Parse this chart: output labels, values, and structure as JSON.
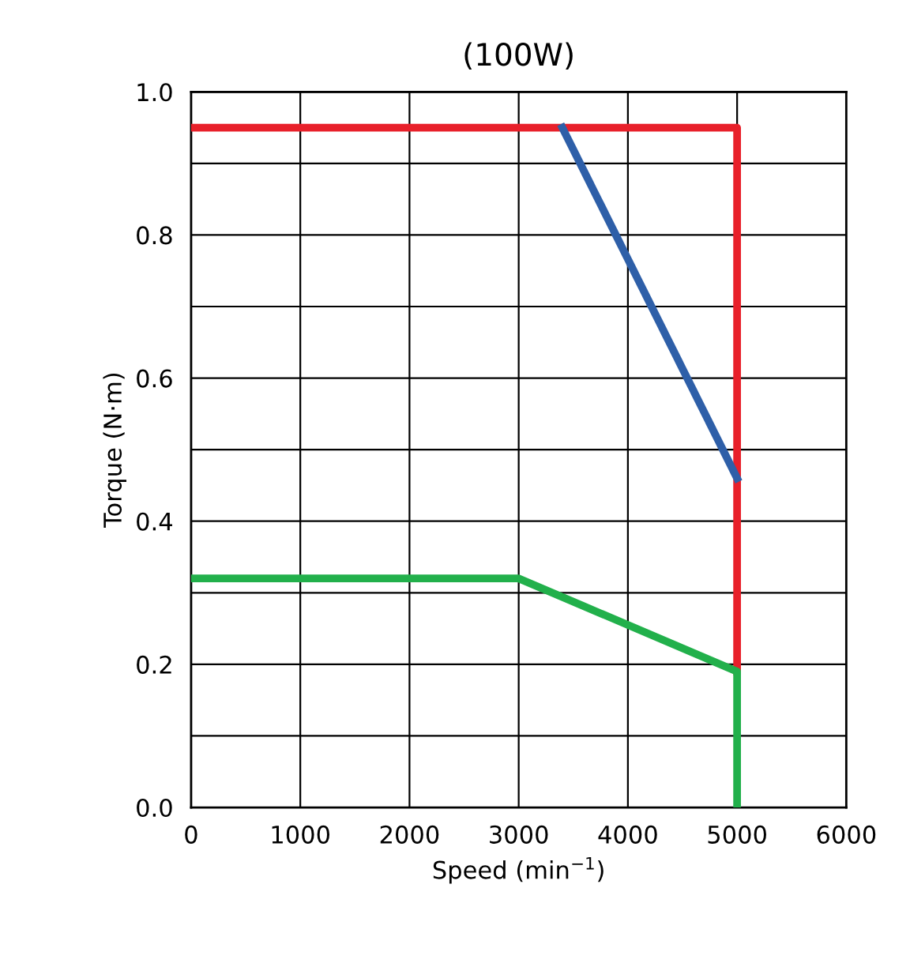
{
  "chart_data": {
    "type": "line",
    "title": "(100W)",
    "xlabel": "Speed (min$^{−1}$)",
    "ylabel": "Torque (N·m)",
    "xlim": [
      0,
      6000
    ],
    "xticks": [
      0,
      1000,
      2000,
      3000,
      4000,
      5000,
      6000
    ],
    "ylim": [
      0,
      1.0
    ],
    "yticks": [
      {
        "value": 0,
        "label": "0.0"
      },
      {
        "value": 0.1,
        "label": null
      },
      0.2,
      {
        "value": 0.3,
        "label": null
      },
      0.4,
      {
        "value": 0.5,
        "label": null
      },
      0.6,
      {
        "value": 0.7,
        "label": null
      },
      0.8,
      {
        "value": 0.9,
        "label": null
      },
      {
        "value": 1,
        "label": "1.0"
      }
    ],
    "grid": true,
    "legend": false,
    "marker": "none",
    "line_style": "solid",
    "series": [
      {
        "color": "#e8202a",
        "x": [
          0,
          5000,
          5000
        ],
        "values": [
          0.95,
          0.95,
          0.19
        ]
      },
      {
        "color": "#2e5fa8",
        "x": [
          3400,
          5000
        ],
        "values": [
          0.95,
          0.46
        ]
      },
      {
        "color": "#22b04b",
        "x": [
          0,
          3000,
          5000,
          5000
        ],
        "values": [
          0.32,
          0.32,
          0.19,
          0.0
        ]
      }
    ]
  }
}
